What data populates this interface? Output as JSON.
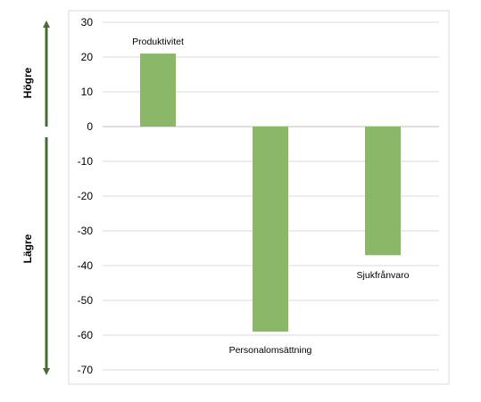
{
  "chart_data": {
    "type": "bar",
    "categories": [
      "Produktivitet",
      "Personalomsättning",
      "Sjukfrånvaro"
    ],
    "values": [
      21,
      -59,
      -37
    ],
    "ylim": [
      -70,
      30
    ],
    "yticks": [
      30,
      20,
      10,
      0,
      -10,
      -20,
      -30,
      -40,
      -50,
      -60,
      -70
    ],
    "grid": true,
    "bar_color": "#8ab866",
    "axis_arrow_color": "#4a6b35",
    "side_labels": {
      "upper": "Högre",
      "lower": "Lägre"
    }
  }
}
